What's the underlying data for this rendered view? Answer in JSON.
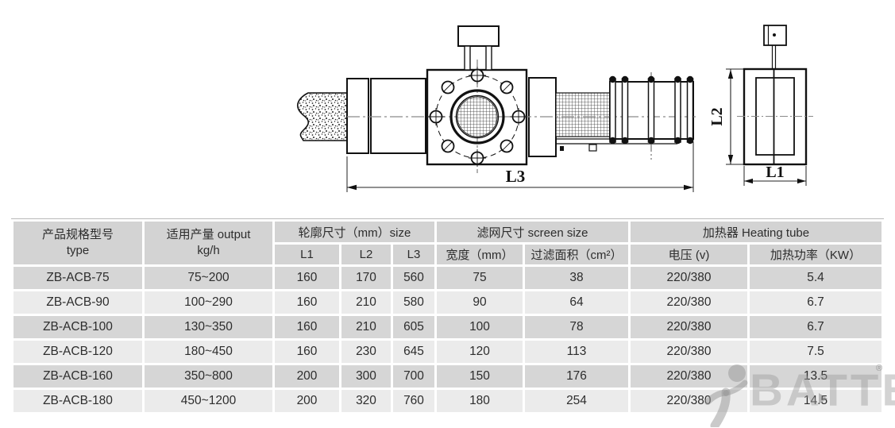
{
  "drawing": {
    "dimension_labels": {
      "main_length": "L3",
      "side_height": "L2",
      "side_width": "L1"
    }
  },
  "table": {
    "columns": [
      "type",
      "output",
      "l1",
      "l2",
      "l3",
      "width",
      "area",
      "voltage",
      "power"
    ],
    "header": {
      "type_line1": "产品规格型号",
      "type_line2": "type",
      "output_line1": "适用产量 output",
      "output_line2": "kg/h",
      "outline_group": "轮廓尺寸（mm）size",
      "screen_group": "滤网尺寸 screen size",
      "heater_group": "加热器 Heating tube",
      "sub_l1": "L1",
      "sub_l2": "L2",
      "sub_l3": "L3",
      "sub_width": "宽度（mm）",
      "sub_area": "过滤面积（cm²）",
      "sub_voltage": "电压 (v)",
      "sub_power": "加热功率（KW）"
    },
    "rows": [
      {
        "type": "ZB-ACB-75",
        "output": "75~200",
        "l1": "160",
        "l2": "170",
        "l3": "560",
        "width": "75",
        "area": "38",
        "voltage": "220/380",
        "power": "5.4"
      },
      {
        "type": "ZB-ACB-90",
        "output": "100~290",
        "l1": "160",
        "l2": "210",
        "l3": "580",
        "width": "90",
        "area": "64",
        "voltage": "220/380",
        "power": "6.7"
      },
      {
        "type": "ZB-ACB-100",
        "output": "130~350",
        "l1": "160",
        "l2": "210",
        "l3": "605",
        "width": "100",
        "area": "78",
        "voltage": "220/380",
        "power": "6.7"
      },
      {
        "type": "ZB-ACB-120",
        "output": "180~450",
        "l1": "160",
        "l2": "230",
        "l3": "645",
        "width": "120",
        "area": "113",
        "voltage": "220/380",
        "power": "7.5"
      },
      {
        "type": "ZB-ACB-160",
        "output": "350~800",
        "l1": "200",
        "l2": "300",
        "l3": "700",
        "width": "150",
        "area": "176",
        "voltage": "220/380",
        "power": "13.5"
      },
      {
        "type": "ZB-ACB-180",
        "output": "450~1200",
        "l1": "200",
        "l2": "320",
        "l3": "760",
        "width": "180",
        "area": "254",
        "voltage": "220/380",
        "power": "14.5"
      }
    ]
  },
  "watermark": {
    "brand": "BATTE",
    "registered_mark": "®"
  },
  "colors": {
    "header_bg": "#d3d3d3",
    "row_dark": "#d6d6d6",
    "row_light": "#ebebeb",
    "line": "#111111",
    "centerline": "#8a8a8a",
    "watermark_gray": "#bdbdbd"
  }
}
